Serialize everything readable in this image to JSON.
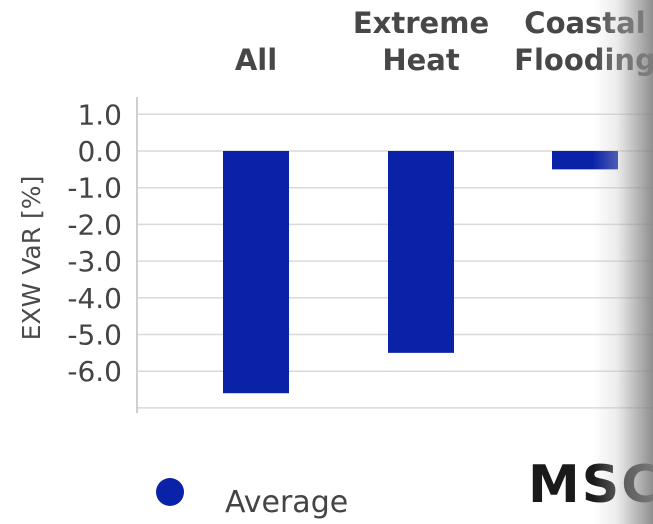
{
  "chart_data": {
    "type": "bar",
    "categories": [
      "All",
      "Extreme Heat",
      "Coastal Flooding"
    ],
    "category_label_lines": [
      [
        "All"
      ],
      [
        "Extreme",
        "Heat"
      ],
      [
        "Coastal",
        "Flooding"
      ]
    ],
    "series": [
      {
        "name": "Average",
        "values": [
          -6.6,
          -5.5,
          -0.5
        ],
        "color": "#0a22a8"
      }
    ],
    "ylabel": "EXW VaR [%]",
    "yticks": [
      "1.0",
      "0.0",
      "-1.0",
      "-2.0",
      "-3.0",
      "-4.0",
      "-5.0",
      "-6.0"
    ],
    "ytick_values": [
      1.0,
      0.0,
      -1.0,
      -2.0,
      -3.0,
      -4.0,
      -5.0,
      -6.0
    ],
    "ylim": [
      -7.0,
      1.5
    ],
    "grid": true,
    "legend": {
      "position": "bottom-left",
      "label": "Average"
    }
  },
  "logo": {
    "text": "MSC"
  },
  "colors": {
    "bar": "#0a22a8",
    "grid": "#d9d9d9",
    "axis": "#cfcfcf"
  }
}
